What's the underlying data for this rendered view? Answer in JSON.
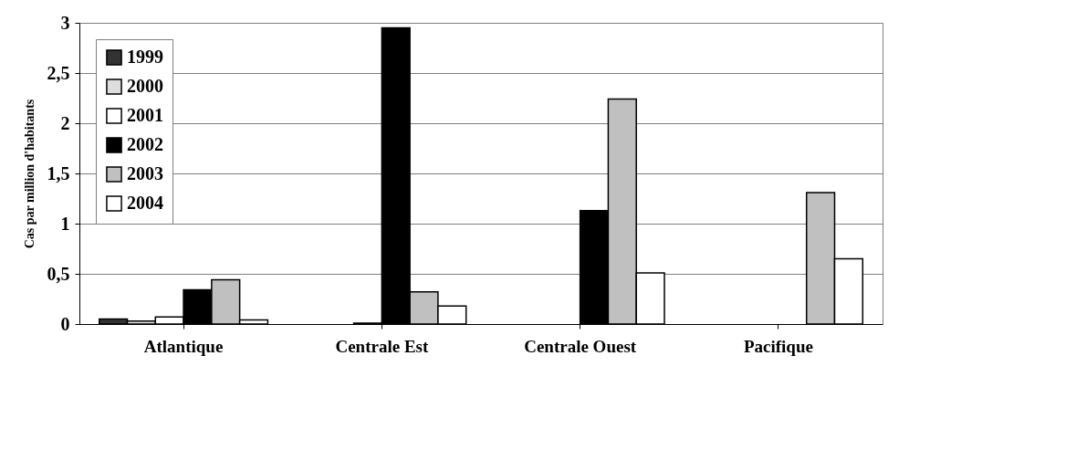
{
  "chart_data": {
    "type": "bar",
    "ylabel": "Cas par million d'habitants",
    "categories": [
      "Atlantique",
      "Centrale Est",
      "Centrale Ouest",
      "Pacifique"
    ],
    "series": [
      {
        "name": "1999",
        "color": "#333333",
        "values": [
          0.05,
          null,
          null,
          null
        ]
      },
      {
        "name": "2000",
        "color": "#dddddd",
        "values": [
          0.03,
          null,
          null,
          null
        ]
      },
      {
        "name": "2001",
        "color": "#ffffff",
        "values": [
          0.07,
          0.01,
          null,
          null
        ]
      },
      {
        "name": "2002",
        "color": "#000000",
        "values": [
          0.34,
          2.95,
          1.13,
          null
        ]
      },
      {
        "name": "2003",
        "color": "#c0c0c0",
        "values": [
          0.44,
          0.32,
          2.24,
          1.31
        ]
      },
      {
        "name": "2004",
        "color": "#ffffff",
        "values": [
          0.04,
          0.18,
          0.51,
          0.65
        ]
      }
    ],
    "ylim": [
      0,
      3
    ],
    "yticks": [
      0,
      {
        "value": 0.5,
        "label": "0,5"
      },
      1,
      {
        "value": 1.5,
        "label": "1,5"
      },
      2,
      {
        "value": 2.5,
        "label": "2,5"
      },
      3
    ],
    "grid": "y",
    "legend": "top left"
  }
}
